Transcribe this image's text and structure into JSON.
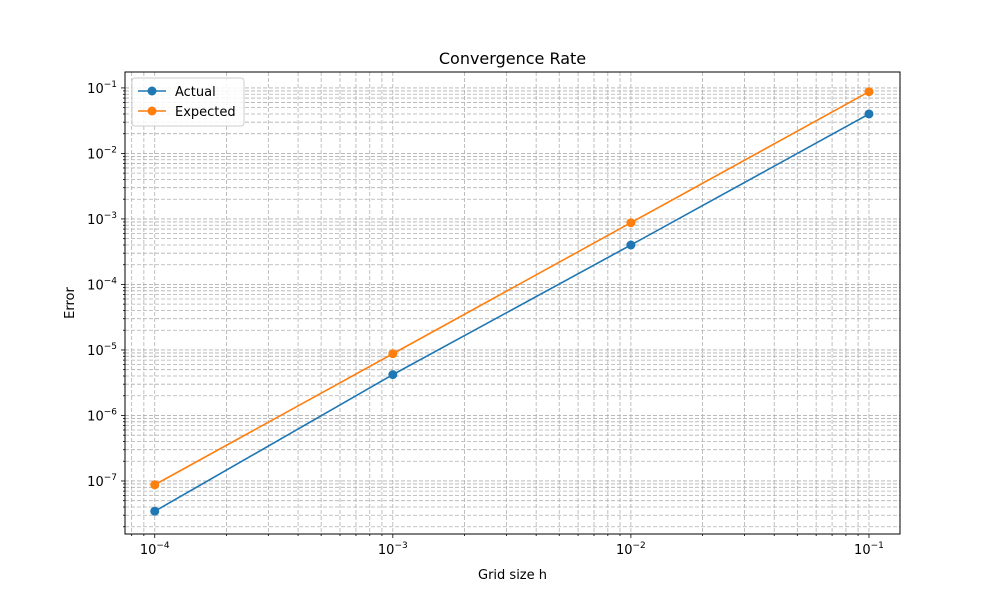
{
  "chart_data": {
    "type": "line",
    "title": "Convergence Rate",
    "xlabel": "Grid size h",
    "ylabel": "Error",
    "xscale": "log",
    "yscale": "log",
    "xlim": [
      7.5e-05,
      0.135
    ],
    "ylim": [
      1.55e-08,
      0.175
    ],
    "grid": "major and minor, dashed",
    "legend_position": "upper-left",
    "x": [
      0.0001,
      0.001,
      0.01,
      0.1
    ],
    "series": [
      {
        "name": "Actual",
        "color": "#1f77b4",
        "marker": "circle",
        "values": [
          3.45e-08,
          4.2e-06,
          0.0004,
          0.04
        ]
      },
      {
        "name": "Expected",
        "color": "#ff7f0e",
        "marker": "circle",
        "values": [
          8.75e-08,
          8.75e-06,
          0.000875,
          0.0875
        ]
      }
    ],
    "x_ticks": [
      {
        "value": 0.0001,
        "base": "10",
        "exp": "−4"
      },
      {
        "value": 0.001,
        "base": "10",
        "exp": "−3"
      },
      {
        "value": 0.01,
        "base": "10",
        "exp": "−2"
      },
      {
        "value": 0.1,
        "base": "10",
        "exp": "−1"
      }
    ],
    "y_ticks": [
      {
        "value": 1e-07,
        "base": "10",
        "exp": "−7"
      },
      {
        "value": 1e-06,
        "base": "10",
        "exp": "−6"
      },
      {
        "value": 1e-05,
        "base": "10",
        "exp": "−5"
      },
      {
        "value": 0.0001,
        "base": "10",
        "exp": "−4"
      },
      {
        "value": 0.001,
        "base": "10",
        "exp": "−3"
      },
      {
        "value": 0.01,
        "base": "10",
        "exp": "−2"
      },
      {
        "value": 0.1,
        "base": "10",
        "exp": "−1"
      }
    ]
  }
}
